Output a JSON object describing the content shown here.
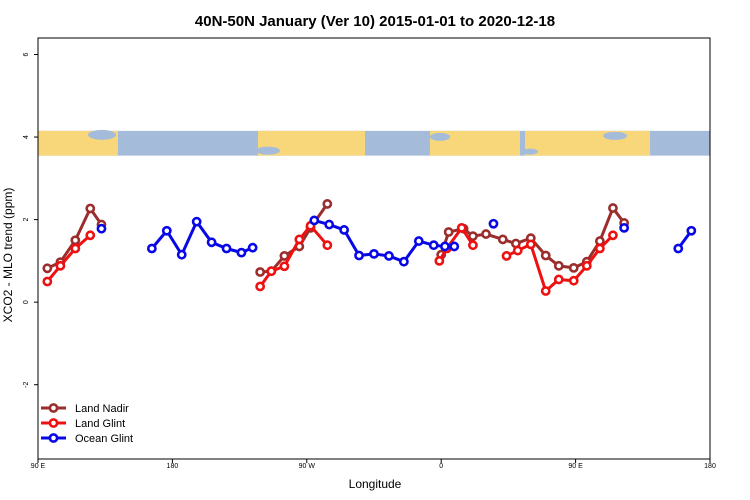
{
  "chart_data": {
    "type": "line",
    "title": "40N-50N January (Ver 10)   2015-01-01 to 2020-12-18",
    "xlabel": "Longitude",
    "ylabel": "XCO2 - MLO trend (ppm)",
    "xlim": [
      90,
      450
    ],
    "ylim": [
      -3.8,
      6.4
    ],
    "x_ticks": [
      {
        "value": 90,
        "label": "90 E"
      },
      {
        "value": 162,
        "label": "180"
      },
      {
        "value": 234,
        "label": "90 W"
      },
      {
        "value": 306,
        "label": "0"
      },
      {
        "value": 378,
        "label": "90 E"
      },
      {
        "value": 450,
        "label": "180"
      }
    ],
    "y_ticks": [
      {
        "value": -2,
        "label": "-2"
      },
      {
        "value": 0,
        "label": "0"
      },
      {
        "value": 2,
        "label": "2"
      },
      {
        "value": 4,
        "label": "4"
      },
      {
        "value": 6,
        "label": "6"
      }
    ],
    "map_strip": {
      "ymin": 3.55,
      "ymax": 4.15,
      "ocean_color": "#a5bbda",
      "land_color": "#f8d77a"
    },
    "legend_position": "bottom-left",
    "series": [
      {
        "name": "Land Nadir",
        "color": "#9b2d2d",
        "points": [
          [
            95,
            0.82
          ],
          [
            102,
            0.97
          ],
          [
            110,
            1.5
          ],
          [
            118,
            2.27
          ],
          [
            124,
            1.88
          ],
          null,
          [
            209,
            0.73
          ],
          [
            215,
            0.75
          ],
          [
            222,
            1.12
          ],
          [
            230,
            1.35
          ],
          [
            236,
            1.8
          ],
          [
            245,
            2.38
          ],
          null,
          [
            306,
            1.15
          ],
          [
            310,
            1.7
          ],
          [
            318,
            1.78
          ],
          [
            323,
            1.6
          ],
          [
            330,
            1.65
          ],
          [
            339,
            1.52
          ],
          [
            346,
            1.42
          ],
          [
            354,
            1.55
          ],
          [
            362,
            1.13
          ],
          [
            369,
            0.88
          ],
          [
            377,
            0.83
          ],
          [
            384,
            0.98
          ],
          [
            391,
            1.48
          ],
          [
            398,
            2.28
          ],
          [
            404,
            1.92
          ]
        ]
      },
      {
        "name": "Land Glint",
        "color": "#ee1111",
        "points": [
          [
            95,
            0.5
          ],
          [
            102,
            0.88
          ],
          [
            110,
            1.3
          ],
          [
            118,
            1.62
          ],
          null,
          [
            209,
            0.38
          ],
          [
            215,
            0.75
          ],
          [
            222,
            0.87
          ],
          [
            230,
            1.52
          ],
          [
            236,
            1.85
          ],
          [
            245,
            1.38
          ],
          null,
          [
            305,
            1.0
          ],
          [
            309,
            1.3
          ],
          [
            317,
            1.8
          ],
          [
            323,
            1.38
          ],
          null,
          [
            341,
            1.12
          ],
          [
            347,
            1.25
          ],
          [
            354,
            1.4
          ],
          [
            362,
            0.27
          ],
          [
            369,
            0.55
          ],
          [
            377,
            0.52
          ],
          [
            384,
            0.88
          ],
          [
            391,
            1.3
          ],
          [
            398,
            1.62
          ]
        ]
      },
      {
        "name": "Ocean Glint",
        "color": "#0808e6",
        "points": [
          [
            124,
            1.78
          ],
          null,
          [
            151,
            1.3
          ],
          [
            159,
            1.73
          ],
          [
            167,
            1.15
          ],
          [
            175,
            1.95
          ],
          [
            183,
            1.45
          ],
          [
            191,
            1.3
          ],
          [
            199,
            1.2
          ],
          [
            205,
            1.32
          ],
          null,
          [
            238,
            1.98
          ],
          [
            246,
            1.88
          ],
          [
            254,
            1.75
          ],
          [
            262,
            1.13
          ],
          [
            270,
            1.17
          ],
          [
            278,
            1.12
          ],
          [
            286,
            0.98
          ],
          [
            294,
            1.48
          ],
          [
            302,
            1.38
          ],
          [
            308,
            1.35
          ],
          [
            313,
            1.35
          ],
          null,
          [
            334,
            1.9
          ],
          null,
          [
            404,
            1.8
          ],
          null,
          [
            433,
            1.3
          ],
          [
            440,
            1.73
          ]
        ]
      }
    ]
  }
}
